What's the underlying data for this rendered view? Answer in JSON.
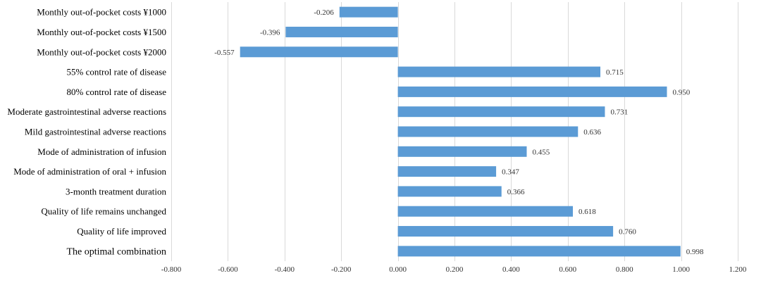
{
  "chart_data": {
    "type": "bar",
    "orientation": "horizontal",
    "categories": [
      "Monthly out-of-pocket costs ¥1000",
      "Monthly out-of-pocket costs ¥1500",
      "Monthly out-of-pocket costs ¥2000",
      "55% control rate of disease",
      "80% control rate of disease",
      "Moderate gastrointestinal adverse reactions",
      "Mild gastrointestinal adverse reactions",
      "Mode of administration of infusion",
      "Mode of administration of oral + infusion",
      "3-month treatment duration",
      "Quality of life remains unchanged",
      "Quality of life improved",
      "The optimal combination"
    ],
    "values": [
      -0.206,
      -0.396,
      -0.557,
      0.715,
      0.95,
      0.731,
      0.636,
      0.455,
      0.347,
      0.366,
      0.618,
      0.76,
      0.998
    ],
    "value_labels": [
      "-0.206",
      "-0.396",
      "-0.557",
      "0.715",
      "0.950",
      "0.731",
      "0.636",
      "0.455",
      "0.347",
      "0.366",
      "0.618",
      "0.760",
      "0.998"
    ],
    "xlim": [
      -0.8,
      1.2
    ],
    "x_ticks": [
      -0.8,
      -0.6,
      -0.4,
      -0.2,
      0.0,
      0.2,
      0.4,
      0.6,
      0.8,
      1.0,
      1.2
    ],
    "x_tick_labels": [
      "-0.800",
      "-0.600",
      "-0.400",
      "-0.200",
      "0.000",
      "0.200",
      "0.400",
      "0.600",
      "0.800",
      "1.000",
      "1.200"
    ],
    "title": "",
    "xlabel": "",
    "ylabel": "",
    "grid": "vertical",
    "legend": "none",
    "colors": {
      "bar": "#5b9bd5",
      "grid": "#d9d9d9",
      "label": "#000000",
      "tick": "#333333"
    }
  }
}
